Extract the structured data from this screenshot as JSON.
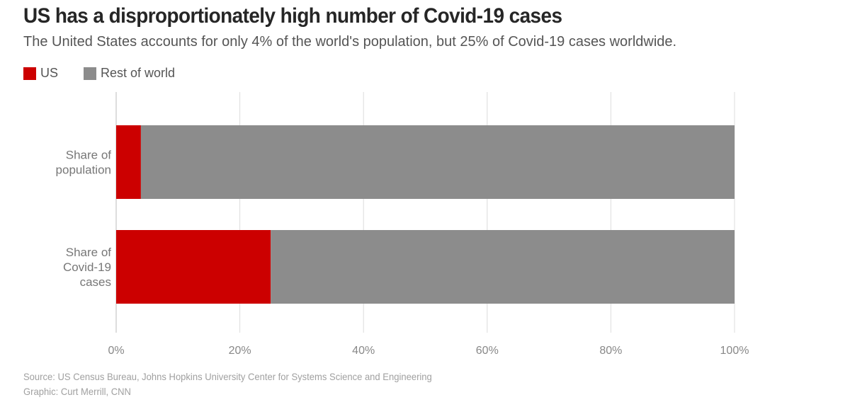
{
  "chart_data": {
    "type": "bar",
    "orientation": "horizontal",
    "stacked": true,
    "title": "US has a disproportionately high number of Covid-19 cases",
    "subtitle": "The United States accounts for only 4% of the world's population, but 25% of Covid-19 cases worldwide.",
    "categories": [
      [
        "Share of",
        "population"
      ],
      [
        "Share of",
        "Covid-19",
        "cases"
      ]
    ],
    "series": [
      {
        "name": "US",
        "color": "#cc0000",
        "values": [
          4,
          25
        ],
        "labels": [
          "4%",
          "25%"
        ]
      },
      {
        "name": "Rest of world",
        "color": "#8c8c8c",
        "values": [
          96,
          75
        ]
      }
    ],
    "xlim": [
      0,
      100
    ],
    "xticks": [
      0,
      20,
      40,
      60,
      80,
      100
    ],
    "xtick_labels": [
      "0%",
      "20%",
      "40%",
      "60%",
      "80%",
      "100%"
    ],
    "grid": "vertical",
    "legend_position": "top-left"
  },
  "footer": {
    "source": "Source: US Census Bureau, Johns Hopkins University Center for Systems Science and Engineering",
    "credit": "Graphic: Curt Merrill, CNN"
  }
}
